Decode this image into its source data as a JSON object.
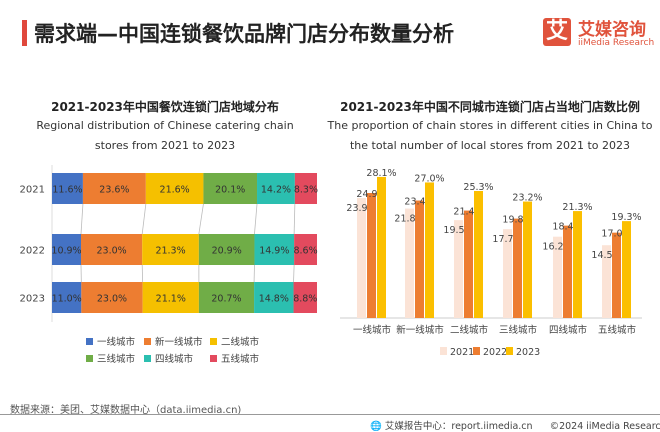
{
  "header": {
    "title": "需求端—中国连锁餐饮品牌门店分布数量分析",
    "logo_mark": "艾",
    "logo_cn": "艾媒咨询",
    "logo_en": "iiMedia Research"
  },
  "chart_data": [
    {
      "type": "bar",
      "orientation": "horizontal",
      "stacked": "percent",
      "title": "2021-2023年中国餐饮连锁门店地域分布",
      "subtitle": "Regional distribution of Chinese catering chain stores from 2021 to 2023",
      "categories": [
        "2021",
        "2022",
        "2023"
      ],
      "series": [
        {
          "name": "一线城市",
          "color": "#4472c4",
          "values": [
            11.6,
            10.9,
            11.0
          ]
        },
        {
          "name": "新一线城市",
          "color": "#ed7d31",
          "values": [
            23.6,
            23.0,
            23.0
          ]
        },
        {
          "name": "二线城市",
          "color": "#f5c000",
          "values": [
            21.6,
            21.3,
            21.1
          ]
        },
        {
          "name": "三线城市",
          "color": "#70ad47",
          "values": [
            20.1,
            20.9,
            20.7
          ]
        },
        {
          "name": "四线城市",
          "color": "#2bbfb0",
          "values": [
            14.2,
            14.9,
            14.8
          ]
        },
        {
          "name": "五线城市",
          "color": "#e34a5e",
          "values": [
            8.3,
            8.6,
            8.8
          ]
        }
      ],
      "legend": "bottom"
    },
    {
      "type": "bar",
      "orientation": "vertical",
      "title": "2021-2023年中国不同城市连锁门店占当地门店数比例",
      "subtitle": "The proportion of chain stores in different cities in China to the total number of local stores from 2021 to 2023",
      "categories": [
        "一线城市",
        "新一线城市",
        "二线城市",
        "三线城市",
        "四线城市",
        "五线城市"
      ],
      "series": [
        {
          "name": "2021",
          "color": "#fbe3d6",
          "values": [
            23.9,
            21.8,
            19.5,
            17.7,
            16.2,
            14.5
          ]
        },
        {
          "name": "2022",
          "color": "#ed7d31",
          "values": [
            24.9,
            23.4,
            21.4,
            19.8,
            18.4,
            17.0
          ]
        },
        {
          "name": "2023",
          "color": "#fbbf00",
          "values": [
            28.1,
            27.0,
            25.3,
            23.2,
            21.3,
            19.3
          ]
        }
      ],
      "legend": "bottom"
    }
  ],
  "footer": {
    "source": "数据来源：美团、艾媒数据中心（data.iimedia.cn)",
    "report": "艾媒报告中心：report.iimedia.cn",
    "copyright": "©2024  iiMedia Research  Inc"
  }
}
